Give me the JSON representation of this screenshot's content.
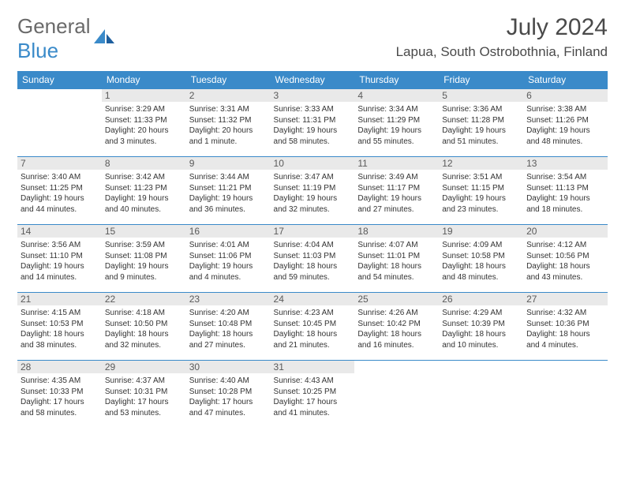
{
  "logo": {
    "text1": "General",
    "text2": "Blue"
  },
  "title": "July 2024",
  "location": "Lapua, South Ostrobothnia, Finland",
  "colors": {
    "header_bg": "#3a8ac9",
    "header_text": "#ffffff",
    "daynum_bg": "#e9e9e9",
    "border": "#3a8ac9",
    "logo_gray": "#6a6a6a",
    "logo_blue": "#3a8ac9"
  },
  "weekdays": [
    "Sunday",
    "Monday",
    "Tuesday",
    "Wednesday",
    "Thursday",
    "Friday",
    "Saturday"
  ],
  "weeks": [
    [
      {
        "n": "",
        "lines": []
      },
      {
        "n": "1",
        "lines": [
          "Sunrise: 3:29 AM",
          "Sunset: 11:33 PM",
          "Daylight: 20 hours",
          "and 3 minutes."
        ]
      },
      {
        "n": "2",
        "lines": [
          "Sunrise: 3:31 AM",
          "Sunset: 11:32 PM",
          "Daylight: 20 hours",
          "and 1 minute."
        ]
      },
      {
        "n": "3",
        "lines": [
          "Sunrise: 3:33 AM",
          "Sunset: 11:31 PM",
          "Daylight: 19 hours",
          "and 58 minutes."
        ]
      },
      {
        "n": "4",
        "lines": [
          "Sunrise: 3:34 AM",
          "Sunset: 11:29 PM",
          "Daylight: 19 hours",
          "and 55 minutes."
        ]
      },
      {
        "n": "5",
        "lines": [
          "Sunrise: 3:36 AM",
          "Sunset: 11:28 PM",
          "Daylight: 19 hours",
          "and 51 minutes."
        ]
      },
      {
        "n": "6",
        "lines": [
          "Sunrise: 3:38 AM",
          "Sunset: 11:26 PM",
          "Daylight: 19 hours",
          "and 48 minutes."
        ]
      }
    ],
    [
      {
        "n": "7",
        "lines": [
          "Sunrise: 3:40 AM",
          "Sunset: 11:25 PM",
          "Daylight: 19 hours",
          "and 44 minutes."
        ]
      },
      {
        "n": "8",
        "lines": [
          "Sunrise: 3:42 AM",
          "Sunset: 11:23 PM",
          "Daylight: 19 hours",
          "and 40 minutes."
        ]
      },
      {
        "n": "9",
        "lines": [
          "Sunrise: 3:44 AM",
          "Sunset: 11:21 PM",
          "Daylight: 19 hours",
          "and 36 minutes."
        ]
      },
      {
        "n": "10",
        "lines": [
          "Sunrise: 3:47 AM",
          "Sunset: 11:19 PM",
          "Daylight: 19 hours",
          "and 32 minutes."
        ]
      },
      {
        "n": "11",
        "lines": [
          "Sunrise: 3:49 AM",
          "Sunset: 11:17 PM",
          "Daylight: 19 hours",
          "and 27 minutes."
        ]
      },
      {
        "n": "12",
        "lines": [
          "Sunrise: 3:51 AM",
          "Sunset: 11:15 PM",
          "Daylight: 19 hours",
          "and 23 minutes."
        ]
      },
      {
        "n": "13",
        "lines": [
          "Sunrise: 3:54 AM",
          "Sunset: 11:13 PM",
          "Daylight: 19 hours",
          "and 18 minutes."
        ]
      }
    ],
    [
      {
        "n": "14",
        "lines": [
          "Sunrise: 3:56 AM",
          "Sunset: 11:10 PM",
          "Daylight: 19 hours",
          "and 14 minutes."
        ]
      },
      {
        "n": "15",
        "lines": [
          "Sunrise: 3:59 AM",
          "Sunset: 11:08 PM",
          "Daylight: 19 hours",
          "and 9 minutes."
        ]
      },
      {
        "n": "16",
        "lines": [
          "Sunrise: 4:01 AM",
          "Sunset: 11:06 PM",
          "Daylight: 19 hours",
          "and 4 minutes."
        ]
      },
      {
        "n": "17",
        "lines": [
          "Sunrise: 4:04 AM",
          "Sunset: 11:03 PM",
          "Daylight: 18 hours",
          "and 59 minutes."
        ]
      },
      {
        "n": "18",
        "lines": [
          "Sunrise: 4:07 AM",
          "Sunset: 11:01 PM",
          "Daylight: 18 hours",
          "and 54 minutes."
        ]
      },
      {
        "n": "19",
        "lines": [
          "Sunrise: 4:09 AM",
          "Sunset: 10:58 PM",
          "Daylight: 18 hours",
          "and 48 minutes."
        ]
      },
      {
        "n": "20",
        "lines": [
          "Sunrise: 4:12 AM",
          "Sunset: 10:56 PM",
          "Daylight: 18 hours",
          "and 43 minutes."
        ]
      }
    ],
    [
      {
        "n": "21",
        "lines": [
          "Sunrise: 4:15 AM",
          "Sunset: 10:53 PM",
          "Daylight: 18 hours",
          "and 38 minutes."
        ]
      },
      {
        "n": "22",
        "lines": [
          "Sunrise: 4:18 AM",
          "Sunset: 10:50 PM",
          "Daylight: 18 hours",
          "and 32 minutes."
        ]
      },
      {
        "n": "23",
        "lines": [
          "Sunrise: 4:20 AM",
          "Sunset: 10:48 PM",
          "Daylight: 18 hours",
          "and 27 minutes."
        ]
      },
      {
        "n": "24",
        "lines": [
          "Sunrise: 4:23 AM",
          "Sunset: 10:45 PM",
          "Daylight: 18 hours",
          "and 21 minutes."
        ]
      },
      {
        "n": "25",
        "lines": [
          "Sunrise: 4:26 AM",
          "Sunset: 10:42 PM",
          "Daylight: 18 hours",
          "and 16 minutes."
        ]
      },
      {
        "n": "26",
        "lines": [
          "Sunrise: 4:29 AM",
          "Sunset: 10:39 PM",
          "Daylight: 18 hours",
          "and 10 minutes."
        ]
      },
      {
        "n": "27",
        "lines": [
          "Sunrise: 4:32 AM",
          "Sunset: 10:36 PM",
          "Daylight: 18 hours",
          "and 4 minutes."
        ]
      }
    ],
    [
      {
        "n": "28",
        "lines": [
          "Sunrise: 4:35 AM",
          "Sunset: 10:33 PM",
          "Daylight: 17 hours",
          "and 58 minutes."
        ]
      },
      {
        "n": "29",
        "lines": [
          "Sunrise: 4:37 AM",
          "Sunset: 10:31 PM",
          "Daylight: 17 hours",
          "and 53 minutes."
        ]
      },
      {
        "n": "30",
        "lines": [
          "Sunrise: 4:40 AM",
          "Sunset: 10:28 PM",
          "Daylight: 17 hours",
          "and 47 minutes."
        ]
      },
      {
        "n": "31",
        "lines": [
          "Sunrise: 4:43 AM",
          "Sunset: 10:25 PM",
          "Daylight: 17 hours",
          "and 41 minutes."
        ]
      },
      {
        "n": "",
        "lines": []
      },
      {
        "n": "",
        "lines": []
      },
      {
        "n": "",
        "lines": []
      }
    ]
  ]
}
